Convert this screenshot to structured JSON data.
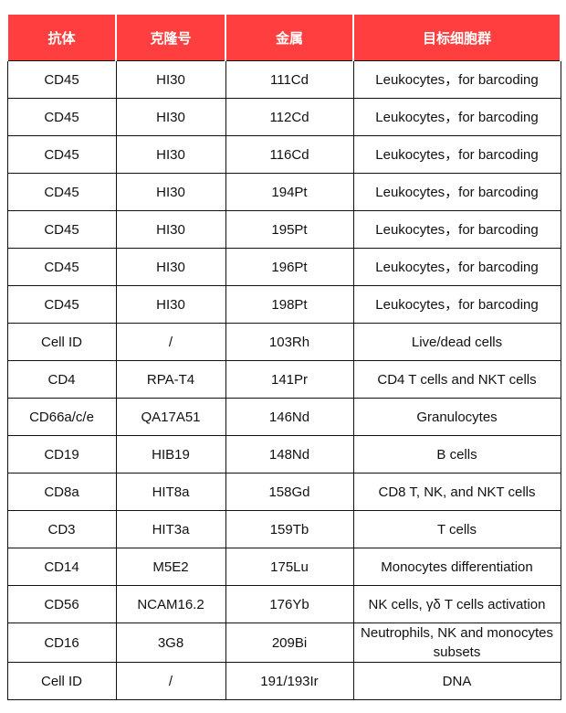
{
  "table": {
    "header_color": "#ff3f3f",
    "columns": [
      "抗体",
      "克隆号",
      "金属",
      "目标细胞群"
    ],
    "rows": [
      [
        "CD45",
        "HI30",
        "111Cd",
        "Leukocytes，for barcoding"
      ],
      [
        "CD45",
        "HI30",
        "112Cd",
        "Leukocytes，for barcoding"
      ],
      [
        "CD45",
        "HI30",
        "116Cd",
        "Leukocytes，for barcoding"
      ],
      [
        "CD45",
        "HI30",
        "194Pt",
        "Leukocytes，for barcoding"
      ],
      [
        "CD45",
        "HI30",
        "195Pt",
        "Leukocytes，for barcoding"
      ],
      [
        "CD45",
        "HI30",
        "196Pt",
        "Leukocytes，for barcoding"
      ],
      [
        "CD45",
        "HI30",
        "198Pt",
        "Leukocytes，for barcoding"
      ],
      [
        "Cell ID",
        "/",
        "103Rh",
        "Live/dead cells"
      ],
      [
        "CD4",
        "RPA-T4",
        "141Pr",
        "CD4 T cells and NKT cells"
      ],
      [
        "CD66a/c/e",
        "QA17A51",
        "146Nd",
        "Granulocytes"
      ],
      [
        "CD19",
        "HIB19",
        "148Nd",
        "B cells"
      ],
      [
        "CD8a",
        "HIT8a",
        "158Gd",
        "CD8 T, NK, and NKT cells"
      ],
      [
        "CD3",
        "HIT3a",
        "159Tb",
        "T cells"
      ],
      [
        "CD14",
        "M5E2",
        "175Lu",
        "Monocytes differentiation"
      ],
      [
        "CD56",
        "NCAM16.2",
        "176Yb",
        "NK cells, γδ T cells activation"
      ],
      [
        "CD16",
        "3G8",
        "209Bi",
        "Neutrophils, NK and monocytes subsets"
      ],
      [
        "Cell ID",
        "/",
        "191/193Ir",
        "DNA"
      ]
    ]
  }
}
